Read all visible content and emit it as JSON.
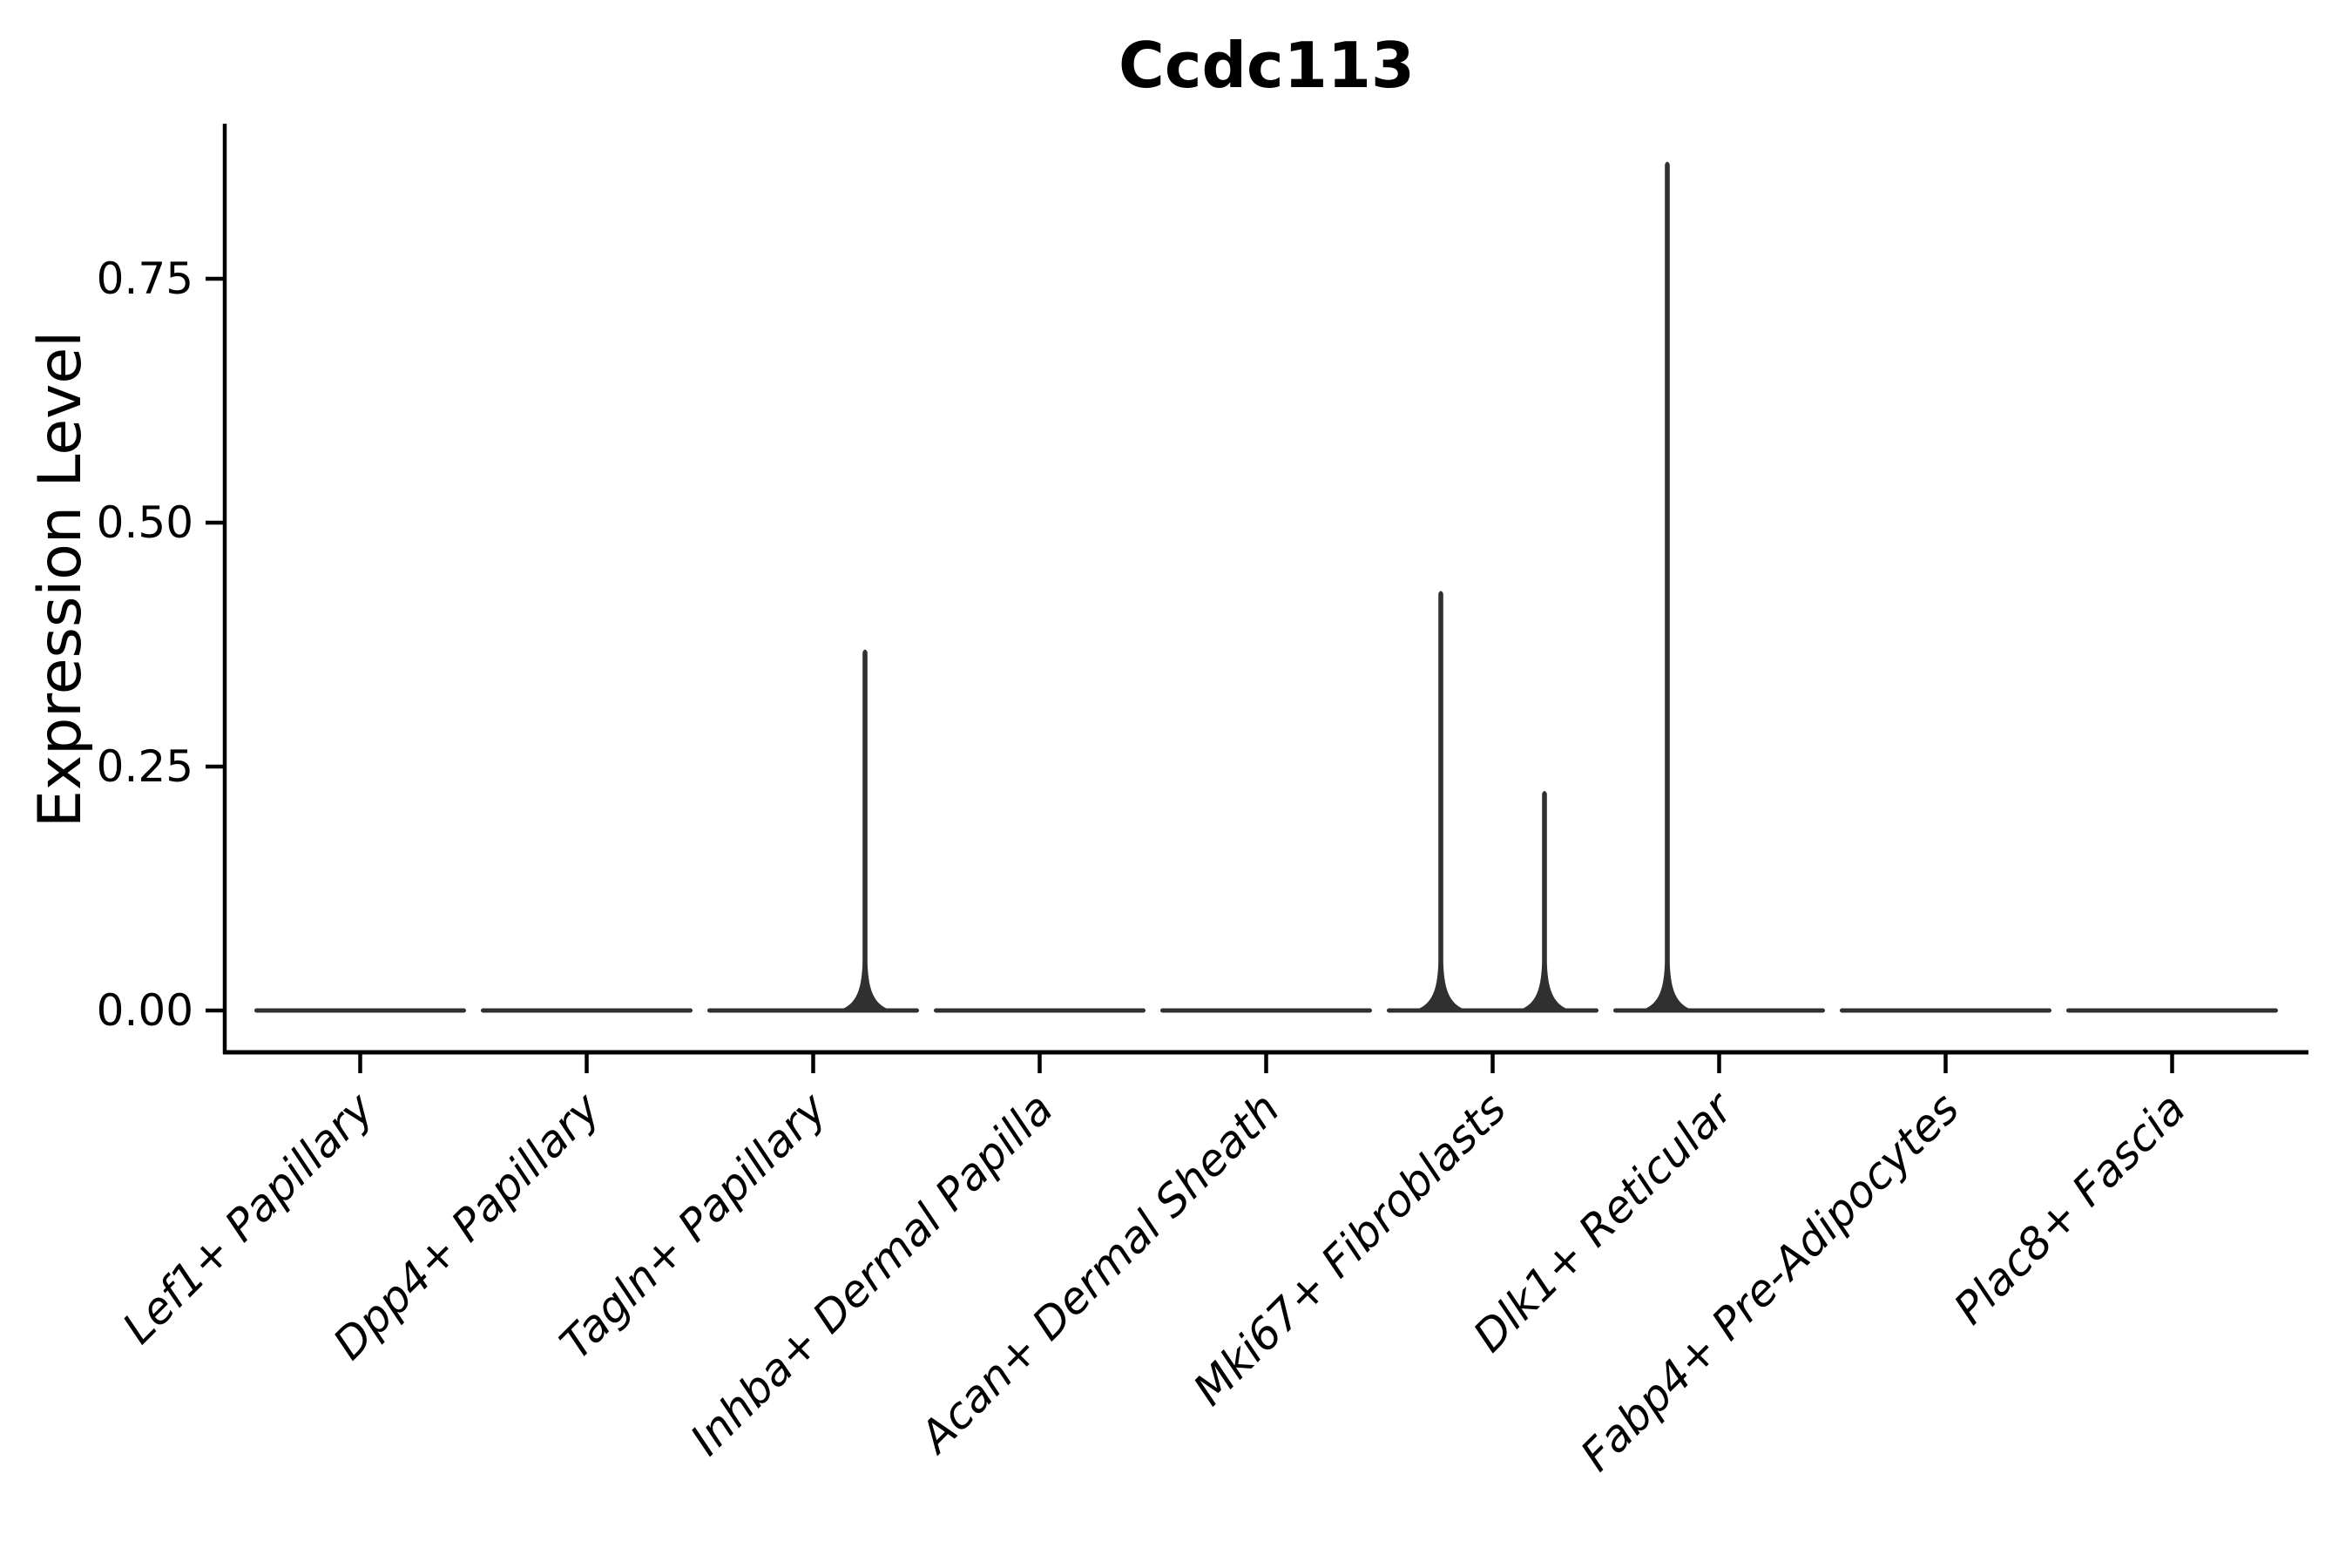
{
  "chart_data": {
    "type": "violin",
    "title": "Ccdc113",
    "ylabel": "Expression Level",
    "xlabel": "",
    "ytick_labels": [
      "0.00",
      "0.25",
      "0.50",
      "0.75"
    ],
    "ytick_values": [
      0.0,
      0.25,
      0.5,
      0.75
    ],
    "ylim": [
      -0.043,
      0.909
    ],
    "grid": "off",
    "legend": "none",
    "x_tick_rotation_deg": 45,
    "x_label_font_style": "italic",
    "categories": [
      "Lef1+ Papillary",
      "Dpp4+ Papillary",
      "Tagln+ Papillary",
      "Inhba+ Dermal Papilla",
      "Acan+ Dermal Sheath",
      "Mki67+ Fibroblasts",
      "Dlk1+ Reticular",
      "Fabp4+ Pre-Adipocytes",
      "Plac8+ Fascia"
    ],
    "violins": [
      {
        "category": "Lef1+ Papillary",
        "baseline_value": 0.0,
        "spikes": []
      },
      {
        "category": "Dpp4+ Papillary",
        "baseline_value": 0.0,
        "spikes": []
      },
      {
        "category": "Tagln+ Papillary",
        "baseline_value": 0.0,
        "spikes": [
          {
            "side": "right",
            "value": 0.37
          }
        ]
      },
      {
        "category": "Inhba+ Dermal Papilla",
        "baseline_value": 0.0,
        "spikes": []
      },
      {
        "category": "Acan+ Dermal Sheath",
        "baseline_value": 0.0,
        "spikes": []
      },
      {
        "category": "Mki67+ Fibroblasts",
        "baseline_value": 0.0,
        "spikes": [
          {
            "side": "left",
            "value": 0.43
          },
          {
            "side": "right",
            "value": 0.225
          }
        ]
      },
      {
        "category": "Dlk1+ Reticular",
        "baseline_value": 0.0,
        "spikes": [
          {
            "side": "left",
            "value": 0.87
          }
        ]
      },
      {
        "category": "Fabp4+ Pre-Adipocytes",
        "baseline_value": 0.0,
        "spikes": []
      },
      {
        "category": "Plac8+ Fascia",
        "baseline_value": 0.0,
        "spikes": []
      }
    ],
    "colors": {
      "violin": "#303030",
      "axis": "#000000",
      "text": "#000000",
      "background": "#ffffff"
    }
  }
}
